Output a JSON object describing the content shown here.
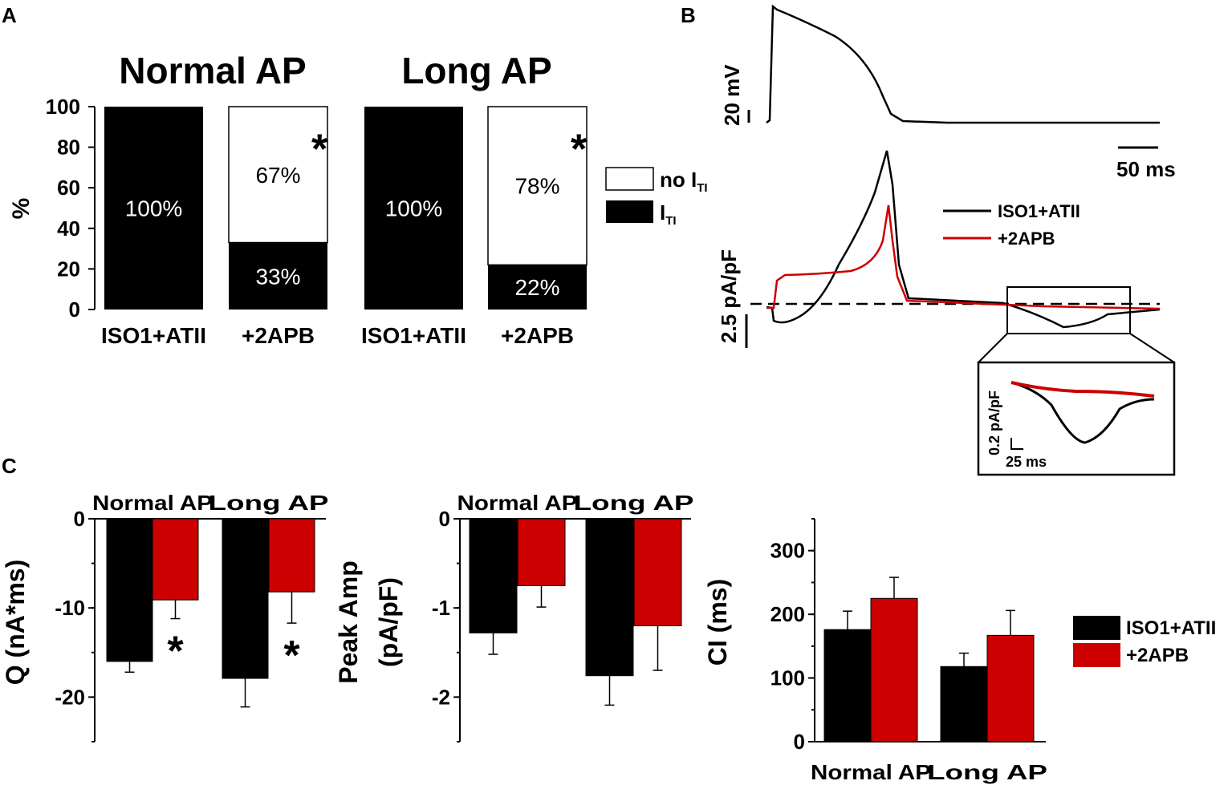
{
  "panel_labels": {
    "a": "A",
    "b": "B",
    "c": "C"
  },
  "colors": {
    "control": "#000000",
    "treated": "#cc0000",
    "none": "#ffffff"
  },
  "chart_data": [
    {
      "id": "A",
      "type": "bar",
      "stacked": true,
      "ylabel": "%",
      "ylim": [
        0,
        100
      ],
      "yticks": [
        "0",
        "20",
        "40",
        "60",
        "80",
        "100"
      ],
      "groups": [
        {
          "title": "Normal AP",
          "categories": [
            "ISO1+ATII",
            "+2APB"
          ],
          "iti": [
            100,
            33
          ],
          "no_iti": [
            0,
            67
          ],
          "labels": [
            "100%",
            "33%"
          ],
          "no_labels": [
            "",
            "67%"
          ],
          "sig": [
            "",
            "*"
          ]
        },
        {
          "title": "Long AP",
          "categories": [
            "ISO1+ATII",
            "+2APB"
          ],
          "iti": [
            100,
            22
          ],
          "no_iti": [
            0,
            78
          ],
          "labels": [
            "100%",
            "22%"
          ],
          "no_labels": [
            "",
            "78%"
          ],
          "sig": [
            "",
            "*"
          ]
        }
      ],
      "legend": {
        "no_iti": "no I",
        "iti": "I",
        "sub": "TI"
      }
    },
    {
      "id": "B",
      "type": "line",
      "scale_bars": {
        "voltage": "20 mV",
        "time": "50 ms",
        "current": "2.5 pA/pF",
        "inset_current": "0.2 pA/pF",
        "inset_time": "25 ms"
      },
      "series": [
        {
          "name": "ISO1+ATII",
          "color": "#000000"
        },
        {
          "name": "+2APB",
          "color": "#cc0000"
        }
      ]
    },
    {
      "id": "C1",
      "type": "bar",
      "ylabel": "Q (nA*ms)",
      "ylim": [
        -25,
        0
      ],
      "yticks": [
        {
          "v": 0,
          "t": "0"
        },
        {
          "v": -10,
          "t": "-10"
        },
        {
          "v": -20,
          "t": "-20"
        }
      ],
      "categories": [
        "Normal AP",
        "Long AP"
      ],
      "series": [
        {
          "name": "ISO1+ATII",
          "values": [
            -16.0,
            -17.9
          ],
          "errors": [
            1.2,
            3.2
          ]
        },
        {
          "name": "+2APB",
          "values": [
            -9.1,
            -8.2
          ],
          "errors": [
            2.1,
            3.5
          ],
          "sig": [
            "*",
            "*"
          ]
        }
      ]
    },
    {
      "id": "C2",
      "type": "bar",
      "ylabel": [
        "Peak Amp",
        "(pA/pF)"
      ],
      "ylim": [
        -2.5,
        0
      ],
      "yticks": [
        {
          "v": 0,
          "t": "0"
        },
        {
          "v": -1,
          "t": "-1"
        },
        {
          "v": -2,
          "t": "-2"
        }
      ],
      "categories": [
        "Normal AP",
        "Long AP"
      ],
      "series": [
        {
          "name": "ISO1+ATII",
          "values": [
            -1.28,
            -1.76
          ],
          "errors": [
            0.24,
            0.33
          ]
        },
        {
          "name": "+2APB",
          "values": [
            -0.75,
            -1.2
          ],
          "errors": [
            0.24,
            0.5
          ]
        }
      ]
    },
    {
      "id": "C3",
      "type": "bar",
      "ylabel": "CI (ms)",
      "ylim": [
        0,
        350
      ],
      "yticks": [
        {
          "v": 0,
          "t": "0"
        },
        {
          "v": 100,
          "t": "100"
        },
        {
          "v": 200,
          "t": "200"
        },
        {
          "v": 300,
          "t": "300"
        }
      ],
      "categories": [
        "Normal AP",
        "Long AP"
      ],
      "series": [
        {
          "name": "ISO1+ATII",
          "values": [
            176,
            118
          ],
          "errors": [
            29,
            21
          ]
        },
        {
          "name": "+2APB",
          "values": [
            225,
            167
          ],
          "errors": [
            33,
            39
          ]
        }
      ],
      "legend": [
        "ISO1+ATII",
        "+2APB"
      ]
    }
  ]
}
